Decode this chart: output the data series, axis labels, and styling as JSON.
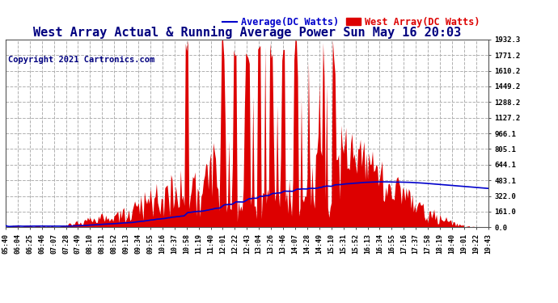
{
  "title": "West Array Actual & Running Average Power Sun May 16 20:03",
  "copyright": "Copyright 2021 Cartronics.com",
  "legend_average": "Average(DC Watts)",
  "legend_west": "West Array(DC Watts)",
  "yticks": [
    0.0,
    161.0,
    322.0,
    483.1,
    644.1,
    805.1,
    966.1,
    1127.2,
    1288.2,
    1449.2,
    1610.2,
    1771.2,
    1932.3
  ],
  "ymax": 1932.3,
  "ymin": 0.0,
  "background_color": "#ffffff",
  "grid_color": "#b0b0b0",
  "bar_color": "#dd0000",
  "line_color": "#0000cc",
  "title_color": "#000080",
  "title_fontsize": 11,
  "copyright_color": "#000080",
  "copyright_fontsize": 7.5,
  "legend_avg_color": "#0000cc",
  "legend_west_color": "#dd0000",
  "legend_fontsize": 8.5
}
